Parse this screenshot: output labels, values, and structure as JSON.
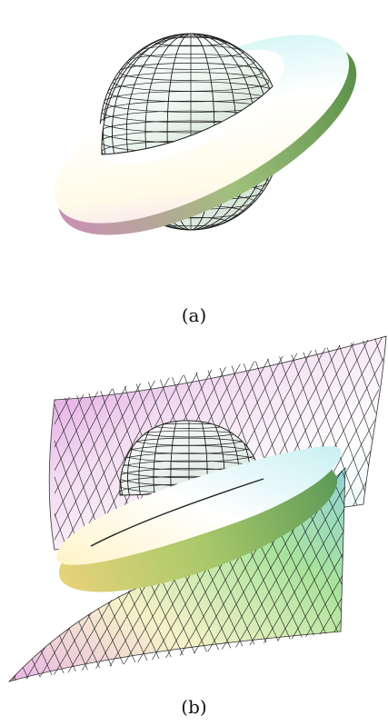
{
  "figure": {
    "panels": [
      {
        "id": "a",
        "caption": "(a)",
        "content": "sphere-with-ring-surface"
      },
      {
        "id": "b",
        "caption": "(b)",
        "content": "sphere-ring-and-saddle-surface"
      }
    ]
  },
  "colors": {
    "grid_line": "#1a1a1a",
    "ring_top": "#f4fbff",
    "ring_edge_green": "#6a9a4a",
    "tint_pink": "#e6a0e8",
    "tint_cyan": "#bfeff0",
    "tint_green": "#8fd68a",
    "tint_yellow": "#f7f0a0"
  }
}
